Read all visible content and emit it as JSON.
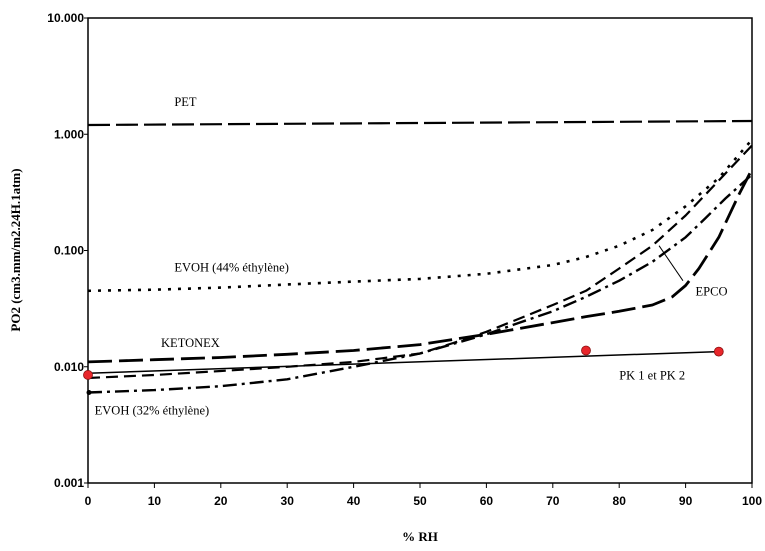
{
  "chart_data": {
    "type": "line",
    "xlabel": "% RH",
    "ylabel": "PO2 (cm3.mm/m2.24H.1atm)",
    "xlim": [
      0,
      100
    ],
    "ylim": [
      0.001,
      10
    ],
    "y_scale": "log",
    "grid": false,
    "x_ticks": [
      "0",
      "10",
      "20",
      "30",
      "40",
      "50",
      "60",
      "70",
      "80",
      "90",
      "100"
    ],
    "y_ticks": [
      {
        "value": 0.001,
        "label": "0.001"
      },
      {
        "value": 0.01,
        "label": "0.010"
      },
      {
        "value": 0.1,
        "label": "0.100"
      },
      {
        "value": 1,
        "label": "1.000"
      },
      {
        "value": 10,
        "label": "10.000"
      }
    ],
    "series": [
      {
        "name": "PET",
        "style": "long-dash",
        "x": [
          0,
          100
        ],
        "y": [
          1.2,
          1.3
        ]
      },
      {
        "name": "EVOH (44% éthylène)",
        "style": "dotted",
        "x": [
          0,
          10,
          20,
          30,
          40,
          50,
          60,
          70,
          75,
          80,
          85,
          90,
          95,
          100
        ],
        "y": [
          0.045,
          0.046,
          0.048,
          0.051,
          0.054,
          0.057,
          0.063,
          0.075,
          0.088,
          0.11,
          0.15,
          0.24,
          0.42,
          0.9
        ]
      },
      {
        "name": "EPCO",
        "style": "dash",
        "x": [
          0,
          10,
          20,
          30,
          40,
          50,
          55,
          60,
          65,
          70,
          75,
          80,
          85,
          90,
          95,
          100
        ],
        "y": [
          0.008,
          0.0085,
          0.0092,
          0.01,
          0.011,
          0.013,
          0.016,
          0.02,
          0.026,
          0.034,
          0.045,
          0.07,
          0.11,
          0.2,
          0.4,
          0.8
        ]
      },
      {
        "name": "KETONEX",
        "style": "long-dash-heavy",
        "x": [
          0,
          10,
          20,
          30,
          40,
          50,
          60,
          70,
          75,
          80,
          85,
          88,
          90,
          92,
          95,
          98,
          100
        ],
        "y": [
          0.011,
          0.0115,
          0.012,
          0.0128,
          0.0138,
          0.0155,
          0.019,
          0.024,
          0.027,
          0.03,
          0.034,
          0.04,
          0.05,
          0.07,
          0.13,
          0.3,
          0.5
        ]
      },
      {
        "name": "EVOH (32% éthylène)",
        "style": "dash-dot",
        "x": [
          0,
          10,
          20,
          30,
          40,
          50,
          60,
          65,
          70,
          75,
          80,
          85,
          90,
          93,
          96,
          100
        ],
        "y": [
          0.006,
          0.0063,
          0.0068,
          0.0078,
          0.01,
          0.013,
          0.019,
          0.024,
          0.03,
          0.04,
          0.055,
          0.08,
          0.13,
          0.19,
          0.28,
          0.45
        ]
      },
      {
        "name": "PK 1 et PK 2",
        "style": "solid",
        "x": [
          0,
          95
        ],
        "y": [
          0.0088,
          0.0135
        ]
      }
    ],
    "points": {
      "name": "PK 1 et PK 2",
      "x": [
        0,
        75,
        95
      ],
      "y": [
        0.0085,
        0.0138,
        0.0135
      ]
    },
    "annotations": [
      {
        "text": "PET",
        "x": 13,
        "y": 1.75
      },
      {
        "text": "EVOH (44% éthylène)",
        "x": 13,
        "y": 0.066
      },
      {
        "text": "KETONEX",
        "x": 11,
        "y": 0.0148
      },
      {
        "text": "EVOH (32% éthylène)",
        "x": 1,
        "y": 0.0039
      },
      {
        "text": "EPCO",
        "x": 91.5,
        "y": 0.041
      },
      {
        "text": "PK 1 et PK 2",
        "x": 80,
        "y": 0.0078
      }
    ],
    "colors": {
      "lines": "#000000",
      "markers": "#e8262b"
    }
  }
}
